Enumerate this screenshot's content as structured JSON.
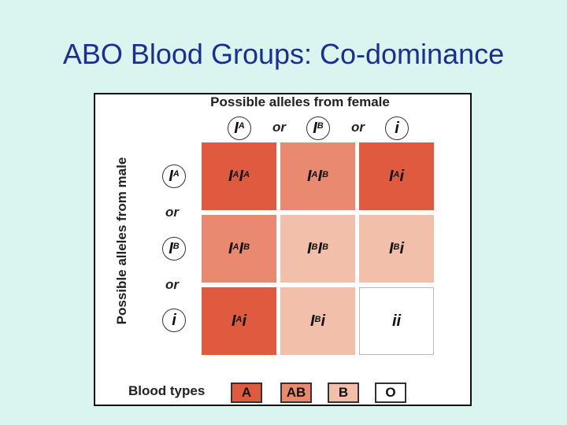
{
  "title": "ABO Blood Groups: Co-dominance",
  "female_header": "Possible alleles from female",
  "male_header": "Possible alleles from male",
  "or_text": "or",
  "female_alleles": [
    {
      "base": "I",
      "sup": "A"
    },
    {
      "base": "I",
      "sup": "B"
    },
    {
      "base": "i",
      "sup": ""
    }
  ],
  "male_alleles": [
    {
      "base": "I",
      "sup": "A"
    },
    {
      "base": "I",
      "sup": "B"
    },
    {
      "base": "i",
      "sup": ""
    }
  ],
  "colors": {
    "A": "#e05a40",
    "AB": "#e98a70",
    "B": "#f2bfaa",
    "O": "#ffffff"
  },
  "grid": [
    [
      {
        "genotype": [
          {
            "base": "I",
            "sup": "A"
          },
          {
            "base": "I",
            "sup": "A"
          }
        ],
        "type": "A"
      },
      {
        "genotype": [
          {
            "base": "I",
            "sup": "A"
          },
          {
            "base": "I",
            "sup": "B"
          }
        ],
        "type": "AB"
      },
      {
        "genotype": [
          {
            "base": "I",
            "sup": "A"
          },
          {
            "base": "i",
            "sup": ""
          }
        ],
        "type": "A"
      }
    ],
    [
      {
        "genotype": [
          {
            "base": "I",
            "sup": "A"
          },
          {
            "base": "I",
            "sup": "B"
          }
        ],
        "type": "AB"
      },
      {
        "genotype": [
          {
            "base": "I",
            "sup": "B"
          },
          {
            "base": "I",
            "sup": "B"
          }
        ],
        "type": "B"
      },
      {
        "genotype": [
          {
            "base": "I",
            "sup": "B"
          },
          {
            "base": "i",
            "sup": ""
          }
        ],
        "type": "B"
      }
    ],
    [
      {
        "genotype": [
          {
            "base": "I",
            "sup": "A"
          },
          {
            "base": "i",
            "sup": ""
          }
        ],
        "type": "A"
      },
      {
        "genotype": [
          {
            "base": "I",
            "sup": "B"
          },
          {
            "base": "i",
            "sup": ""
          }
        ],
        "type": "B"
      },
      {
        "genotype": [
          {
            "base": "i",
            "sup": ""
          },
          {
            "base": "i",
            "sup": ""
          }
        ],
        "type": "O"
      }
    ]
  ],
  "legend": {
    "label": "Blood types",
    "items": [
      "A",
      "AB",
      "B",
      "O"
    ]
  }
}
